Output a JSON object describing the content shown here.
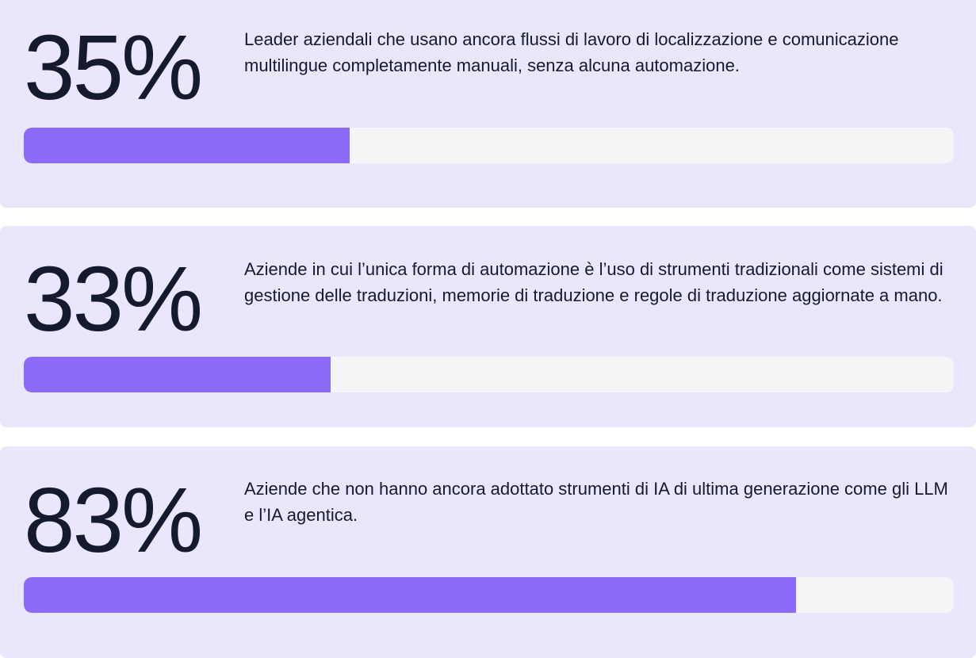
{
  "chart_data": [
    {
      "type": "bar",
      "value": 35,
      "value_label": "35%",
      "description": "Leader aziendali che usano ancora flussi di lavoro di localizzazione e comunicazione multilingue completamente manuali, senza alcuna automazione."
    },
    {
      "type": "bar",
      "value": 33,
      "value_label": "33%",
      "description": "Aziende in cui l’unica forma di automazione è l’uso di strumenti tradizionali come sistemi di gestione delle traduzioni, memorie di traduzione e regole di traduzione aggiornate a mano."
    },
    {
      "type": "bar",
      "value": 83,
      "value_label": "83%",
      "description": "Aziende che non hanno ancora adottato strumenti di IA di ultima generazione come gli LLM e l’IA agentica."
    }
  ],
  "colors": {
    "card_background": "#eae6fc",
    "bar_fill": "#8b69f9",
    "bar_track": "#f5f5f7",
    "text": "#161a2e"
  }
}
